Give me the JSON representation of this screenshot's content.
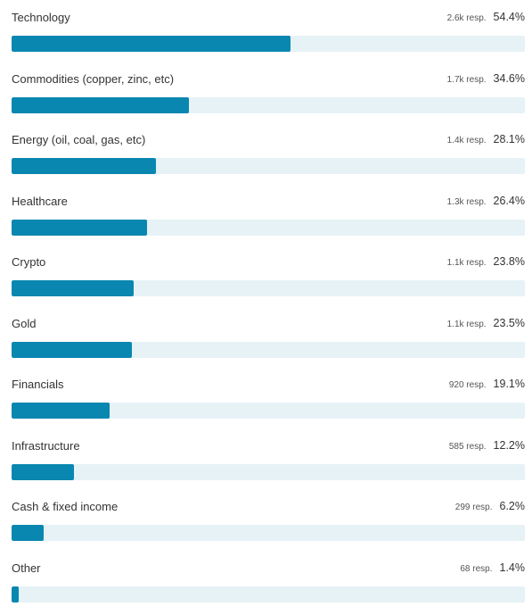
{
  "colors": {
    "bar_fill": "#0a87b0",
    "bar_track": "#e6f2f6",
    "text": "#333333"
  },
  "chart_data": {
    "type": "bar",
    "orientation": "horizontal",
    "title": "",
    "xlabel": "",
    "ylabel": "",
    "xlim": [
      0,
      100
    ],
    "grid": false,
    "categories": [
      "Technology",
      "Commodities (copper, zinc, etc)",
      "Energy (oil, coal, gas, etc)",
      "Healthcare",
      "Crypto",
      "Gold",
      "Financials",
      "Infrastructure",
      "Cash & fixed income",
      "Other"
    ],
    "values": [
      54.4,
      34.6,
      28.1,
      26.4,
      23.8,
      23.5,
      19.1,
      12.2,
      6.2,
      1.4
    ],
    "value_labels": [
      "54.4%",
      "34.6%",
      "28.1%",
      "26.4%",
      "23.8%",
      "23.5%",
      "19.1%",
      "12.2%",
      "6.2%",
      "1.4%"
    ],
    "responses": [
      "2.6k resp.",
      "1.7k resp.",
      "1.4k resp.",
      "1.3k resp.",
      "1.1k resp.",
      "1.1k resp.",
      "920 resp.",
      "585 resp.",
      "299 resp.",
      "68 resp."
    ]
  }
}
